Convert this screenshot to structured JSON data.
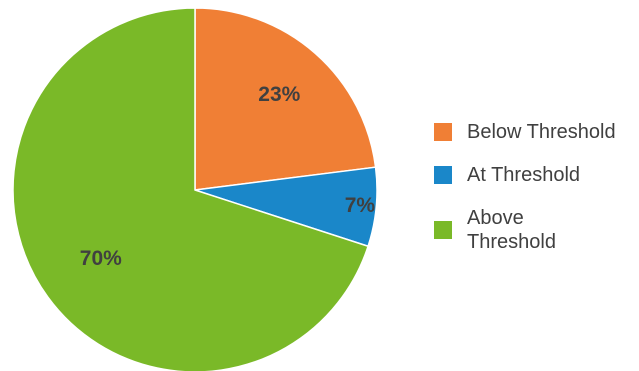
{
  "chart_data": {
    "type": "pie",
    "title": "",
    "categories": [
      "Below Threshold",
      "At Threshold",
      "Above Threshold"
    ],
    "values": [
      23,
      7,
      70
    ],
    "labels": [
      "23%",
      "7%",
      "70%"
    ],
    "colors": [
      "#f07f35",
      "#1a87c9",
      "#7ab928"
    ],
    "legend": "right",
    "start_angle_deg": 0,
    "direction": "clockwise"
  }
}
